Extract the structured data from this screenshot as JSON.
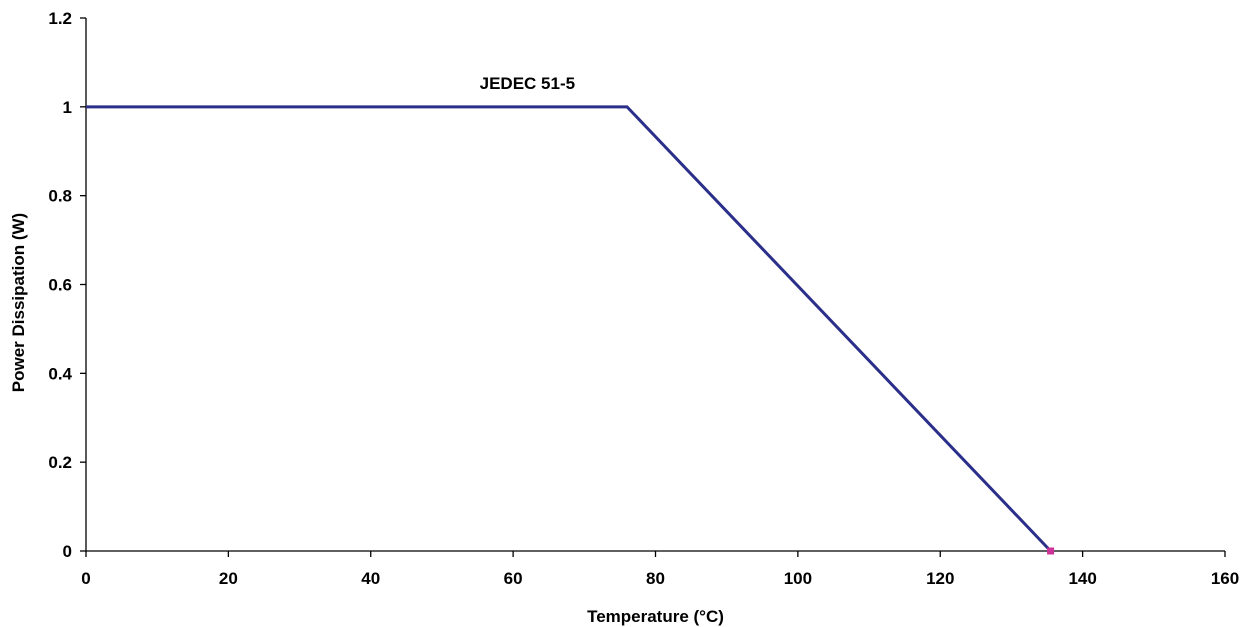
{
  "chart_data": {
    "type": "line",
    "title": "",
    "xlabel": "Temperature (°C)",
    "ylabel": "Power Dissipation (W)",
    "xlim": [
      0,
      160
    ],
    "ylim": [
      0,
      1.2
    ],
    "x_ticks": [
      0,
      20,
      40,
      60,
      80,
      100,
      120,
      140,
      160
    ],
    "x_tick_labels": [
      "0",
      "20",
      "40",
      "60",
      "80",
      "100",
      "120",
      "140",
      "160"
    ],
    "y_ticks": [
      0,
      0.2,
      0.4,
      0.6,
      0.8,
      1,
      1.2
    ],
    "y_tick_labels": [
      "0",
      "0.2",
      "0.4",
      "0.6",
      "0.8",
      "1",
      "1.2"
    ],
    "grid": false,
    "series": [
      {
        "color": "#2b2f8a",
        "points": [
          {
            "x": 0,
            "y": 1
          },
          {
            "x": 76,
            "y": 1
          },
          {
            "x": 135.5,
            "y": 0
          }
        ]
      }
    ],
    "endpoint_marker": {
      "x": 135.5,
      "y": 0,
      "color": "#cc3399"
    },
    "annotations": [
      {
        "text": "JEDEC 51-5",
        "x": 62,
        "y": 1.04
      }
    ]
  }
}
